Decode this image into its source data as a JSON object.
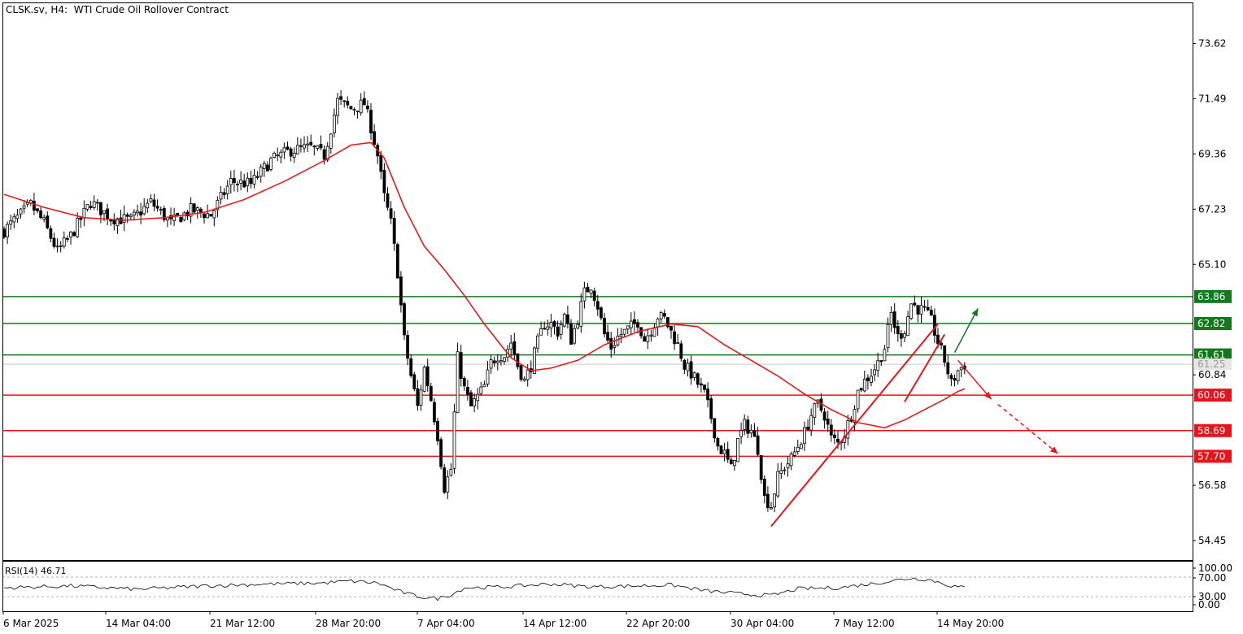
{
  "header": {
    "symbol": "CLSK.sv, H4:",
    "instrument": "WTI Crude Oil Rollover Contract"
  },
  "rsi": {
    "label": "RSI(14)",
    "value": "46.71",
    "ticks": [
      "100.00",
      "70.00",
      "30.00",
      "0.00"
    ]
  },
  "colors": {
    "candle": "#000000",
    "ma": "#e11c1c",
    "support": "#e8141c",
    "resistance": "#14781e",
    "arrow_up": "#14781e",
    "arrow_down": "#e8141c",
    "current_price_line": "#c8c8c8"
  },
  "chart_data": {
    "type": "candlestick",
    "title": "WTI Crude Oil Rollover Contract",
    "timeframe": "H4",
    "y_ticks": [
      "73.62",
      "71.49",
      "69.36",
      "67.23",
      "65.10",
      "60.84",
      "56.58",
      "54.45"
    ],
    "x_ticks": [
      "6 Mar 2025",
      "14 Mar 04:00",
      "21 Mar 12:00",
      "28 Mar 20:00",
      "7 Apr 04:00",
      "14 Apr 12:00",
      "22 Apr 20:00",
      "30 Apr 04:00",
      "7 May 12:00",
      "14 May 20:00"
    ],
    "ylim": [
      53.7,
      75.2
    ],
    "current_price": "61.25",
    "levels": [
      {
        "value": 63.86,
        "label": "63.86",
        "kind": "resistance"
      },
      {
        "value": 62.82,
        "label": "62.82",
        "kind": "resistance"
      },
      {
        "value": 61.61,
        "label": "61.61",
        "kind": "resistance"
      },
      {
        "value": 60.06,
        "label": "60.06",
        "kind": "support"
      },
      {
        "value": 58.69,
        "label": "58.69",
        "kind": "support"
      },
      {
        "value": 57.7,
        "label": "57.70",
        "kind": "support"
      }
    ],
    "price_path": [
      [
        0,
        66.4
      ],
      [
        8,
        67.4
      ],
      [
        12,
        66.7
      ],
      [
        16,
        65.6
      ],
      [
        20,
        66.2
      ],
      [
        26,
        67.5
      ],
      [
        32,
        66.9
      ],
      [
        38,
        66.8
      ],
      [
        44,
        67.5
      ],
      [
        50,
        66.7
      ],
      [
        56,
        67.2
      ],
      [
        62,
        67.0
      ],
      [
        68,
        68.3
      ],
      [
        74,
        68.2
      ],
      [
        80,
        69.1
      ],
      [
        86,
        69.5
      ],
      [
        92,
        69.6
      ],
      [
        96,
        69.3
      ],
      [
        100,
        71.4
      ],
      [
        104,
        71.1
      ],
      [
        108,
        71.3
      ],
      [
        110,
        70.4
      ],
      [
        112,
        69.3
      ],
      [
        114,
        67.7
      ],
      [
        116,
        66.7
      ],
      [
        118,
        64.8
      ],
      [
        120,
        62.2
      ],
      [
        122,
        60.8
      ],
      [
        124,
        59.6
      ],
      [
        126,
        61.1
      ],
      [
        128,
        59.9
      ],
      [
        130,
        58.5
      ],
      [
        132,
        56.5
      ],
      [
        134,
        57.2
      ],
      [
        136,
        61.5
      ],
      [
        138,
        60.3
      ],
      [
        140,
        59.6
      ],
      [
        142,
        60.0
      ],
      [
        144,
        60.4
      ],
      [
        146,
        61.3
      ],
      [
        148,
        61.6
      ],
      [
        150,
        61.6
      ],
      [
        152,
        62.1
      ],
      [
        154,
        61.2
      ],
      [
        156,
        60.6
      ],
      [
        158,
        61.2
      ],
      [
        160,
        62.1
      ],
      [
        162,
        62.8
      ],
      [
        164,
        62.8
      ],
      [
        166,
        62.5
      ],
      [
        168,
        63.1
      ],
      [
        170,
        62.2
      ],
      [
        172,
        63.0
      ],
      [
        174,
        64.0
      ],
      [
        176,
        64.3
      ],
      [
        178,
        63.5
      ],
      [
        180,
        62.4
      ],
      [
        182,
        61.9
      ],
      [
        184,
        62.3
      ],
      [
        186,
        62.5
      ],
      [
        188,
        62.7
      ],
      [
        190,
        62.9
      ],
      [
        192,
        62.2
      ],
      [
        194,
        62.6
      ],
      [
        196,
        63.1
      ],
      [
        198,
        63.0
      ],
      [
        200,
        62.5
      ],
      [
        202,
        62.0
      ],
      [
        204,
        61.2
      ],
      [
        206,
        60.9
      ],
      [
        208,
        60.5
      ],
      [
        210,
        60.1
      ],
      [
        212,
        59.2
      ],
      [
        214,
        58.1
      ],
      [
        216,
        57.8
      ],
      [
        218,
        57.2
      ],
      [
        220,
        58.3
      ],
      [
        222,
        58.9
      ],
      [
        224,
        58.7
      ],
      [
        226,
        58.0
      ],
      [
        228,
        56.1
      ],
      [
        230,
        55.8
      ],
      [
        232,
        56.9
      ],
      [
        234,
        57.3
      ],
      [
        236,
        57.6
      ],
      [
        238,
        58.1
      ],
      [
        240,
        58.6
      ],
      [
        242,
        59.3
      ],
      [
        244,
        59.7
      ],
      [
        246,
        59.3
      ],
      [
        248,
        58.4
      ],
      [
        250,
        58.2
      ],
      [
        252,
        58.6
      ],
      [
        254,
        59.3
      ],
      [
        256,
        60.2
      ],
      [
        258,
        60.6
      ],
      [
        260,
        60.9
      ],
      [
        262,
        61.3
      ],
      [
        264,
        61.9
      ],
      [
        266,
        63.2
      ],
      [
        268,
        62.3
      ],
      [
        270,
        62.6
      ],
      [
        272,
        63.6
      ],
      [
        274,
        63.4
      ],
      [
        276,
        63.3
      ],
      [
        278,
        62.9
      ],
      [
        280,
        62.1
      ],
      [
        282,
        61.4
      ],
      [
        284,
        60.5
      ],
      [
        286,
        61.0
      ],
      [
        288,
        61.25
      ]
    ],
    "ma_path": [
      [
        0,
        67.8
      ],
      [
        12,
        67.3
      ],
      [
        24,
        66.9
      ],
      [
        36,
        66.8
      ],
      [
        48,
        66.9
      ],
      [
        60,
        67.1
      ],
      [
        72,
        67.6
      ],
      [
        84,
        68.3
      ],
      [
        96,
        69.1
      ],
      [
        104,
        69.7
      ],
      [
        110,
        69.8
      ],
      [
        114,
        69.2
      ],
      [
        120,
        67.3
      ],
      [
        126,
        65.8
      ],
      [
        132,
        64.9
      ],
      [
        138,
        63.9
      ],
      [
        144,
        62.8
      ],
      [
        152,
        61.5
      ],
      [
        158,
        61.0
      ],
      [
        164,
        61.1
      ],
      [
        172,
        61.4
      ],
      [
        180,
        62.0
      ],
      [
        190,
        62.5
      ],
      [
        200,
        62.8
      ],
      [
        208,
        62.7
      ],
      [
        216,
        62.0
      ],
      [
        224,
        61.4
      ],
      [
        232,
        60.8
      ],
      [
        240,
        60.1
      ],
      [
        248,
        59.5
      ],
      [
        256,
        59.0
      ],
      [
        264,
        58.8
      ],
      [
        270,
        59.1
      ],
      [
        276,
        59.5
      ],
      [
        282,
        59.9
      ],
      [
        286,
        60.2
      ],
      [
        288,
        60.3
      ]
    ],
    "rsi_path": [
      [
        0,
        48
      ],
      [
        20,
        52
      ],
      [
        40,
        45
      ],
      [
        60,
        52
      ],
      [
        80,
        56
      ],
      [
        96,
        58
      ],
      [
        104,
        62
      ],
      [
        112,
        58
      ],
      [
        118,
        42
      ],
      [
        124,
        30
      ],
      [
        130,
        26
      ],
      [
        134,
        34
      ],
      [
        138,
        48
      ],
      [
        150,
        50
      ],
      [
        164,
        56
      ],
      [
        176,
        50
      ],
      [
        190,
        52
      ],
      [
        200,
        54
      ],
      [
        210,
        42
      ],
      [
        220,
        36
      ],
      [
        230,
        32
      ],
      [
        238,
        46
      ],
      [
        250,
        48
      ],
      [
        262,
        58
      ],
      [
        272,
        68
      ],
      [
        278,
        64
      ],
      [
        284,
        52
      ],
      [
        288,
        48
      ]
    ],
    "trendlines": [
      {
        "from": [
          230,
          55.0
        ],
        "to": [
          280,
          62.8
        ],
        "color": "support"
      },
      {
        "from": [
          270,
          59.8
        ],
        "to": [
          282,
          62.4
        ],
        "color": "support"
      }
    ],
    "arrows": [
      {
        "from": [
          285,
          61.7
        ],
        "to": [
          292,
          63.4
        ],
        "color": "up",
        "dashed": false
      },
      {
        "from": [
          286,
          61.4
        ],
        "to": [
          296,
          59.9
        ],
        "color": "down",
        "dashed": false
      },
      {
        "from": [
          298,
          59.7
        ],
        "to": [
          316,
          57.8
        ],
        "color": "down",
        "dashed": true
      }
    ]
  }
}
